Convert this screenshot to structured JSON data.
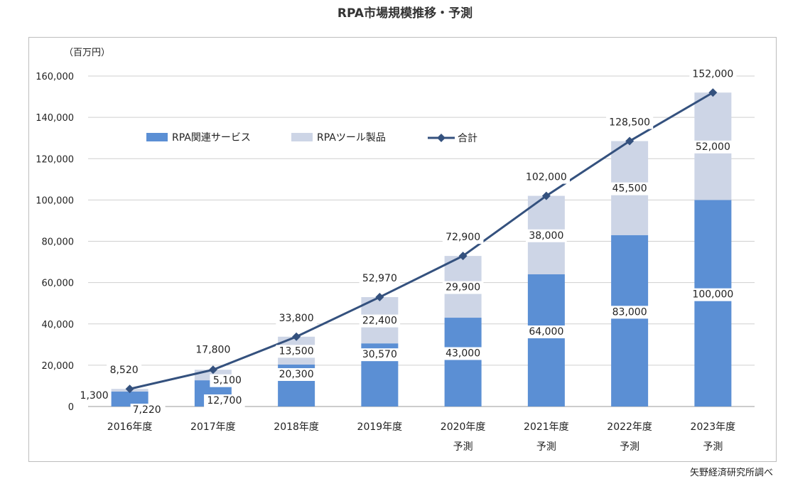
{
  "chart_data": {
    "type": "bar",
    "stacked": true,
    "title": "RPA市場規模推移・予測",
    "unit_label": "（百万円）",
    "source": "矢野経済研究所調べ",
    "categories": [
      [
        "2016年度",
        ""
      ],
      [
        "2017年度",
        ""
      ],
      [
        "2018年度",
        ""
      ],
      [
        "2019年度",
        ""
      ],
      [
        "2020年度",
        "予測"
      ],
      [
        "2021年度",
        "予測"
      ],
      [
        "2022年度",
        "予測"
      ],
      [
        "2023年度",
        "予測"
      ]
    ],
    "y_ticks": [
      "0",
      "20,000",
      "40,000",
      "60,000",
      "80,000",
      "100,000",
      "120,000",
      "140,000",
      "160,000"
    ],
    "ylim": [
      0,
      160000
    ],
    "grid": true,
    "legend_position": "top-left",
    "series": [
      {
        "name": "RPA関連サービス",
        "kind": "bar",
        "color": "#5b8fd4",
        "values": [
          7220,
          12700,
          20300,
          30570,
          43000,
          64000,
          83000,
          100000
        ],
        "labels": [
          "7,220",
          "12,700",
          "20,300",
          "30,570",
          "43,000",
          "64,000",
          "83,000",
          "100,000"
        ]
      },
      {
        "name": "RPAツール製品",
        "kind": "bar",
        "color": "#cdd5e6",
        "values": [
          1300,
          5100,
          13500,
          22400,
          29900,
          38000,
          45500,
          52000
        ],
        "labels": [
          "1,300",
          "5,100",
          "13,500",
          "22,400",
          "29,900",
          "38,000",
          "45,500",
          "52,000"
        ]
      },
      {
        "name": "合計",
        "kind": "line",
        "color": "#34517e",
        "values": [
          8520,
          17800,
          33800,
          52970,
          72900,
          102000,
          128500,
          152000
        ],
        "labels": [
          "8,520",
          "17,800",
          "33,800",
          "52,970",
          "72,900",
          "102,000",
          "128,500",
          "152,000"
        ]
      }
    ]
  }
}
